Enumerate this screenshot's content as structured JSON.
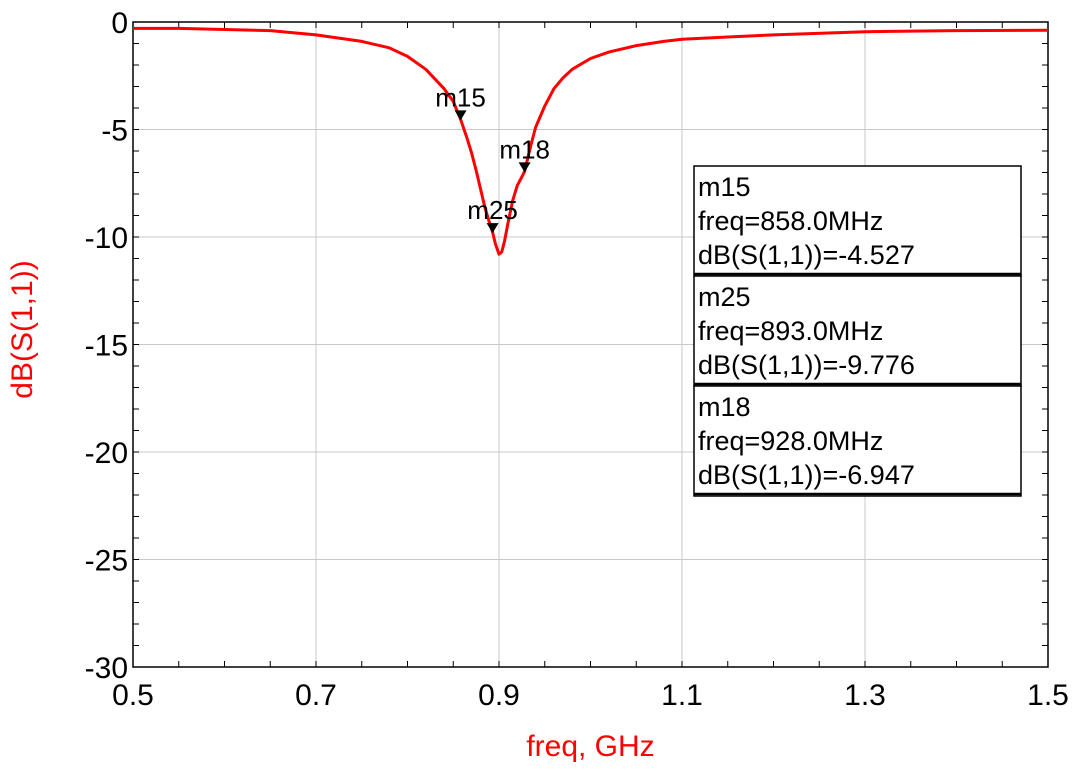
{
  "chart_data": {
    "type": "line",
    "title": "",
    "xlabel": "freq, GHz",
    "ylabel": "dB(S(1,1))",
    "xlim": [
      0.5,
      1.5
    ],
    "ylim": [
      -30,
      0
    ],
    "xticks": [
      "0.5",
      "0.7",
      "0.9",
      "1.1",
      "1.3",
      "1.5"
    ],
    "xtick_values": [
      0.5,
      0.7,
      0.9,
      1.1,
      1.3,
      1.5
    ],
    "yticks": [
      "0",
      "-5",
      "-10",
      "-15",
      "-20",
      "-25",
      "-30"
    ],
    "ytick_values": [
      0,
      -5,
      -10,
      -15,
      -20,
      -25,
      -30
    ],
    "grid": true,
    "series": [
      {
        "color": "#ff0000",
        "x": [
          0.5,
          0.55,
          0.6,
          0.65,
          0.7,
          0.75,
          0.78,
          0.8,
          0.82,
          0.84,
          0.85,
          0.858,
          0.865,
          0.87,
          0.875,
          0.88,
          0.885,
          0.89,
          0.893,
          0.896,
          0.9,
          0.903,
          0.906,
          0.91,
          0.915,
          0.92,
          0.925,
          0.928,
          0.935,
          0.94,
          0.95,
          0.96,
          0.97,
          0.98,
          1.0,
          1.02,
          1.05,
          1.08,
          1.1,
          1.15,
          1.2,
          1.3,
          1.4,
          1.5
        ],
        "y": [
          -0.3,
          -0.3,
          -0.35,
          -0.4,
          -0.6,
          -0.9,
          -1.2,
          -1.6,
          -2.2,
          -3.1,
          -3.7,
          -4.527,
          -5.4,
          -6.1,
          -6.9,
          -7.8,
          -8.7,
          -9.4,
          -9.776,
          -10.3,
          -10.8,
          -10.7,
          -10.2,
          -9.3,
          -8.3,
          -7.6,
          -7.2,
          -6.947,
          -5.7,
          -4.9,
          -3.9,
          -3.1,
          -2.6,
          -2.2,
          -1.7,
          -1.4,
          -1.1,
          -0.9,
          -0.8,
          -0.7,
          -0.6,
          -0.45,
          -0.4,
          -0.38
        ]
      }
    ],
    "markers": [
      {
        "name": "m15",
        "x": 0.858,
        "y": -4.527
      },
      {
        "name": "m18",
        "x": 0.928,
        "y": -6.947
      },
      {
        "name": "m25",
        "x": 0.893,
        "y": -9.776
      }
    ],
    "readouts": [
      {
        "name": "m15",
        "freq": "freq=858.0MHz",
        "value": "dB(S(1,1))=-4.527"
      },
      {
        "name": "m25",
        "freq": "freq=893.0MHz",
        "value": "dB(S(1,1))=-9.776"
      },
      {
        "name": "m18",
        "freq": "freq=928.0MHz",
        "value": "dB(S(1,1))=-6.947"
      }
    ],
    "label_color": "#ff0000"
  }
}
